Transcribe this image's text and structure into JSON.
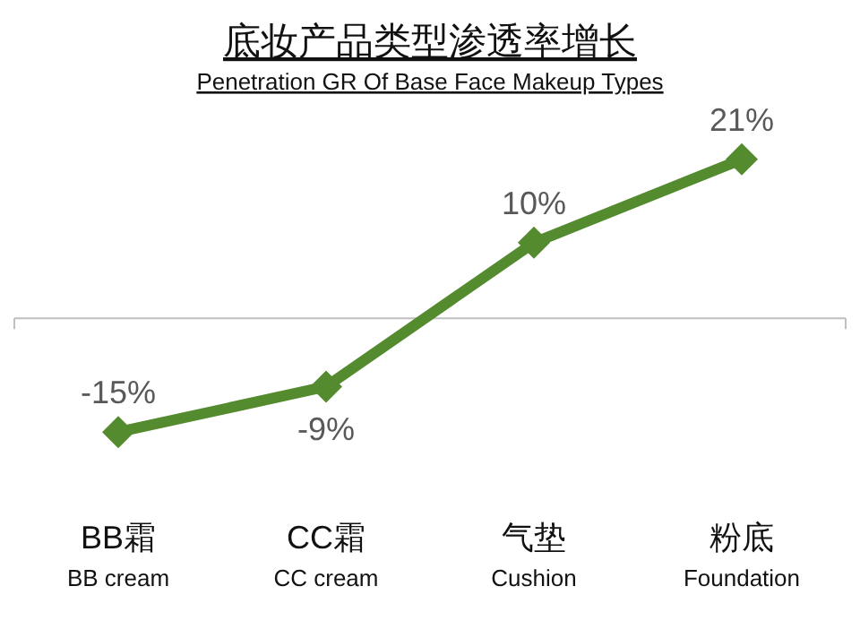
{
  "chart_data": {
    "type": "line",
    "title": "底妆产品类型渗透率增长",
    "subtitle": "Penetration GR Of Base Face Makeup Types",
    "categories": [
      "BB霜\nBB cream",
      "CC霜\nCC cream",
      "气垫\nCushion",
      "粉底\nFoundation"
    ],
    "series": [
      {
        "color": "#548b2f",
        "values": [
          -15,
          -9,
          10,
          21
        ],
        "value_labels": [
          "-15%",
          "-9%",
          "10%",
          "21%"
        ]
      }
    ],
    "marker": "diamond",
    "line_style": "solid"
  }
}
